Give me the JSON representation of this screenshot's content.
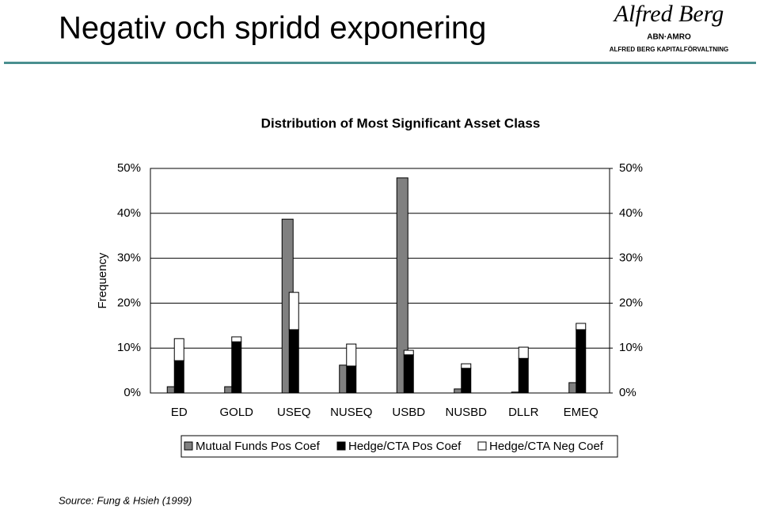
{
  "title": "Negativ och spridd exponering",
  "logo": {
    "script": "Alfred Berg",
    "brand": "ABN·AMRO",
    "company": "ALFRED BERG KAPITALFÖRVALTNING"
  },
  "source": "Source: Fung & Hsieh (1999)",
  "chart_data": {
    "type": "bar",
    "title": "Distribution of Most Significant Asset Class",
    "ylabel": "Frequency",
    "categories": [
      "ED",
      "GOLD",
      "USEQ",
      "NUSEQ",
      "USBD",
      "NUSBD",
      "DLLR",
      "EMEQ"
    ],
    "series": [
      {
        "name": "Mutual Funds Pos Coef",
        "color": "#808080",
        "values": [
          1.4,
          1.4,
          38.7,
          6.2,
          47.9,
          0.9,
          0.2,
          2.3
        ]
      },
      {
        "name": "Hedge/CTA Pos Coef",
        "color": "#000000",
        "values": [
          7.2,
          11.4,
          14.1,
          6.0,
          8.5,
          5.5,
          7.7,
          14.1
        ],
        "stack": "hedge"
      },
      {
        "name": "Hedge/CTA Neg Coef",
        "color": "#ffffff",
        "values": [
          4.9,
          1.1,
          8.3,
          4.9,
          1.0,
          1.0,
          2.5,
          1.4
        ],
        "stack": "hedge"
      }
    ],
    "ylim": [
      0,
      50
    ],
    "yticks": [
      {
        "value": 0,
        "label": "0%"
      },
      {
        "value": 10,
        "label": "10%"
      },
      {
        "value": 20,
        "label": "20%"
      },
      {
        "value": 30,
        "label": "30%"
      },
      {
        "value": 40,
        "label": "40%"
      },
      {
        "value": 50,
        "label": "50%"
      }
    ],
    "y2lim": [
      0,
      50
    ],
    "y2ticks": [
      {
        "value": 0,
        "label": "0%"
      },
      {
        "value": 10,
        "label": "10%"
      },
      {
        "value": 20,
        "label": "20%"
      },
      {
        "value": 30,
        "label": "30%"
      },
      {
        "value": 40,
        "label": "40%"
      },
      {
        "value": 50,
        "label": "50%"
      }
    ],
    "grid": true,
    "legend": "bottom"
  }
}
